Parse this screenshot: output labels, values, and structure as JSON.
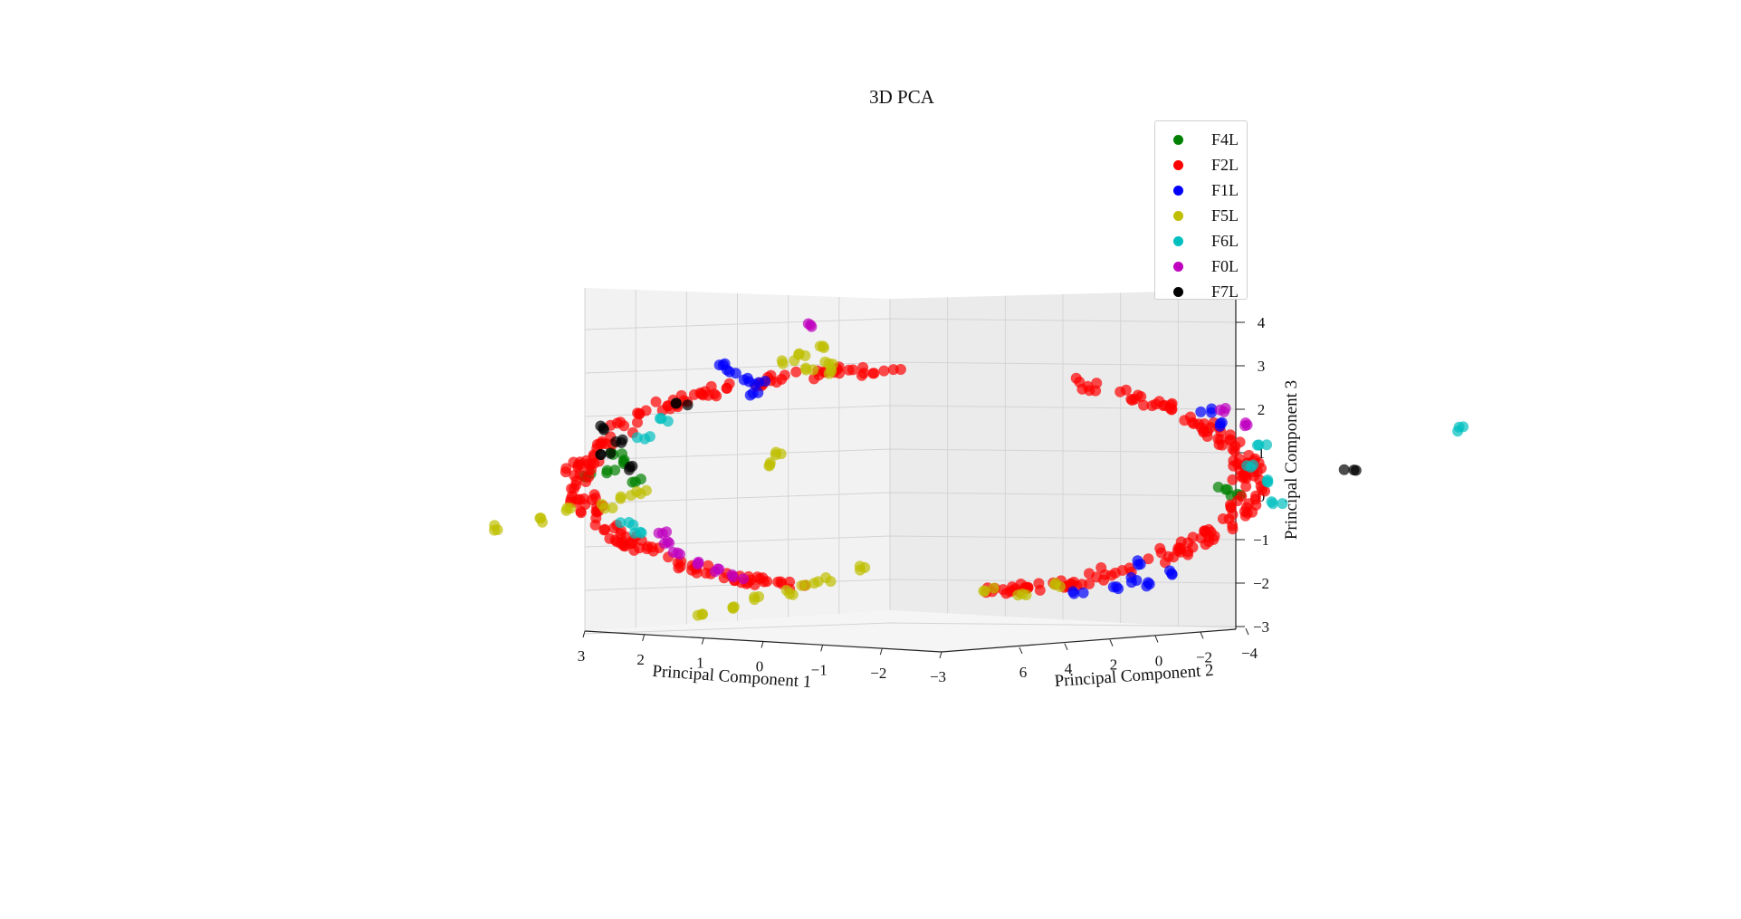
{
  "chart_data": {
    "type": "scatter",
    "projection": "3d",
    "title": "3D PCA",
    "xlabel": "Principal Component 1",
    "ylabel": "Principal Component 2",
    "zlabel": "Principal Component 3",
    "xlim": [
      -3,
      3
    ],
    "ylim": [
      -4,
      7
    ],
    "zlim": [
      -3,
      4
    ],
    "xticks": [
      "3",
      "2",
      "1",
      "0",
      "−1",
      "−2",
      "−3"
    ],
    "yticks": [
      "6",
      "4",
      "2",
      "0",
      "−2",
      "−4"
    ],
    "zticks": [
      "4",
      "3",
      "2",
      "1",
      "0",
      "−1",
      "−2",
      "−3"
    ],
    "grid": true,
    "legend_position": "top-right",
    "series": [
      {
        "name": "F4L",
        "color": "#008000",
        "points": [
          [
            1.6,
            0.2,
            0.7
          ],
          [
            1.7,
            0.5,
            0.5
          ],
          [
            1.55,
            0.4,
            0.3
          ],
          [
            1.65,
            0.1,
            0.9
          ],
          [
            -1.7,
            0.3,
            0.1
          ],
          [
            -1.75,
            0.6,
            0.0
          ],
          [
            1.8,
            0.2,
            0.4
          ]
        ]
      },
      {
        "name": "F2L",
        "color": "#ff0000",
        "ring": true
      },
      {
        "name": "F1L",
        "color": "#0000ff",
        "points": [
          [
            1.0,
            0.0,
            2.8
          ],
          [
            0.95,
            0.3,
            2.6
          ],
          [
            0.9,
            0.2,
            2.3
          ],
          [
            0.85,
            -0.2,
            2.5
          ],
          [
            1.05,
            0.1,
            3.0
          ],
          [
            -1.2,
            0.2,
            -2.0
          ],
          [
            -1.3,
            0.4,
            -2.1
          ],
          [
            -1.1,
            0.0,
            -2.2
          ],
          [
            -1.4,
            0.5,
            -1.8
          ],
          [
            -1.25,
            0.3,
            -1.6
          ],
          [
            -0.9,
            0.2,
            -2.3
          ],
          [
            -1.6,
            0.1,
            1.9
          ],
          [
            -1.65,
            0.3,
            1.6
          ]
        ]
      },
      {
        "name": "F5L",
        "color": "#bfbf00",
        "points": [
          [
            0.7,
            0.0,
            3.0
          ],
          [
            0.6,
            0.3,
            2.9
          ],
          [
            0.5,
            0.1,
            2.8
          ],
          [
            0.45,
            -0.2,
            2.95
          ],
          [
            0.65,
            0.2,
            3.2
          ],
          [
            0.55,
            0.5,
            3.4
          ],
          [
            2.3,
            0.2,
            -0.8
          ],
          [
            2.1,
            0.4,
            -0.6
          ],
          [
            1.9,
            0.1,
            -0.4
          ],
          [
            1.7,
            0.2,
            -0.3
          ],
          [
            1.6,
            0.4,
            -0.1
          ],
          [
            1.5,
            0.1,
            0.0
          ],
          [
            1.2,
            0.0,
            -2.8
          ],
          [
            1.0,
            0.3,
            -2.6
          ],
          [
            0.9,
            0.2,
            -2.4
          ],
          [
            0.7,
            0.1,
            -2.3
          ],
          [
            0.6,
            0.4,
            -2.1
          ],
          [
            0.5,
            0.1,
            -2.0
          ],
          [
            -0.4,
            0.2,
            -2.2
          ],
          [
            -0.6,
            0.3,
            -2.3
          ],
          [
            -0.8,
            0.1,
            -2.1
          ],
          [
            0.8,
            0.5,
            0.7
          ],
          [
            0.75,
            0.3,
            0.9
          ],
          [
            0.3,
            0.4,
            -1.7
          ]
        ]
      },
      {
        "name": "F6L",
        "color": "#00bfbf",
        "points": [
          [
            -1.9,
            0.4,
            1.1
          ],
          [
            -1.85,
            0.2,
            0.6
          ],
          [
            -1.95,
            0.6,
            0.3
          ],
          [
            -2.0,
            0.3,
            -0.2
          ],
          [
            -3.0,
            0.5,
            1.5
          ],
          [
            1.6,
            0.3,
            -0.7
          ],
          [
            1.55,
            0.1,
            -0.9
          ],
          [
            1.4,
            0.5,
            1.7
          ],
          [
            1.5,
            0.2,
            1.3
          ]
        ]
      },
      {
        "name": "F0L",
        "color": "#bf00bf",
        "points": [
          [
            0.6,
            1.0,
            3.9
          ],
          [
            1.3,
            0.2,
            -1.4
          ],
          [
            1.2,
            0.3,
            -1.6
          ],
          [
            1.1,
            0.1,
            -1.8
          ],
          [
            1.0,
            0.4,
            -1.9
          ],
          [
            -1.8,
            0.3,
            1.6
          ],
          [
            -1.7,
            0.2,
            1.9
          ],
          [
            1.4,
            0.3,
            -0.9
          ],
          [
            1.35,
            0.2,
            -1.1
          ]
        ]
      },
      {
        "name": "F7L",
        "color": "#000000",
        "points": [
          [
            1.65,
            0.3,
            1.2
          ],
          [
            1.7,
            0.1,
            0.9
          ],
          [
            1.6,
            0.5,
            0.6
          ],
          [
            1.75,
            0.2,
            1.5
          ],
          [
            1.3,
            0.4,
            2.1
          ],
          [
            -2.4,
            0.3,
            0.5
          ]
        ]
      }
    ]
  }
}
